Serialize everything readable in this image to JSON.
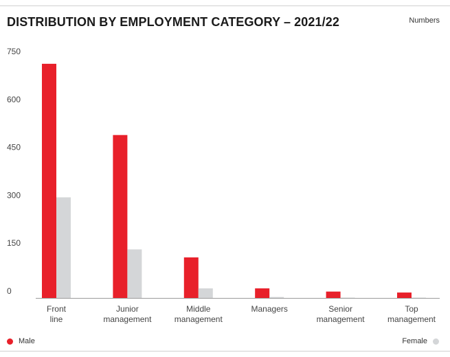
{
  "chart_data": {
    "type": "bar",
    "title": "DISTRIBUTION BY EMPLOYMENT CATEGORY – 2021/22",
    "unit_label": "Numbers",
    "categories": [
      [
        "Front",
        "line"
      ],
      [
        "Junior",
        "management"
      ],
      [
        "Middle",
        "management"
      ],
      [
        "Managers"
      ],
      [
        "Senior",
        "management"
      ],
      [
        "Top",
        "management"
      ]
    ],
    "series": [
      {
        "name": "Male",
        "color": "#e8202a",
        "values": [
          733,
          510,
          127,
          30,
          20,
          17
        ]
      },
      {
        "name": "Female",
        "color": "#d4d6d8",
        "values": [
          315,
          152,
          30,
          3,
          1,
          1
        ]
      }
    ],
    "yticks": [
      "0",
      "150",
      "300",
      "450",
      "600",
      "750"
    ],
    "ylim": [
      0,
      750
    ],
    "grid": false,
    "legend_placement": "bottom"
  }
}
